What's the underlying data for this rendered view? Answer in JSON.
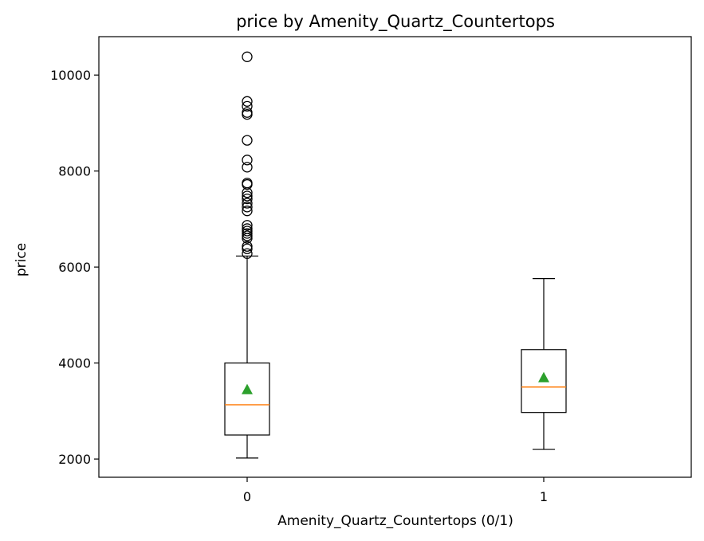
{
  "chart_data": {
    "type": "box",
    "title": "price by Amenity_Quartz_Countertops",
    "xlabel": "Amenity_Quartz_Countertops (0/1)",
    "ylabel": "price",
    "categories": [
      "0",
      "1"
    ],
    "ylim": [
      1620,
      10800
    ],
    "yticks": [
      2000,
      4000,
      6000,
      8000,
      10000
    ],
    "grid": false,
    "legend": "none",
    "boxes": [
      {
        "category": "0",
        "whisker_low": 2020,
        "q1": 2500,
        "median": 3130,
        "q3": 4000,
        "whisker_high": 6230,
        "mean": 3450,
        "outliers": [
          6280,
          6380,
          6430,
          6600,
          6650,
          6700,
          6750,
          6800,
          6870,
          7170,
          7250,
          7330,
          7420,
          7480,
          7550,
          7720,
          7750,
          8080,
          8230,
          8640,
          9180,
          9220,
          9350,
          9450,
          10380
        ]
      },
      {
        "category": "1",
        "whisker_low": 2200,
        "q1": 2970,
        "median": 3500,
        "q3": 4280,
        "whisker_high": 5760,
        "mean": 3700,
        "outliers": []
      }
    ],
    "colors": {
      "box": "#000000",
      "median": "#ff7f0e",
      "mean": "#2ca02c",
      "outlier": "#000000"
    }
  }
}
